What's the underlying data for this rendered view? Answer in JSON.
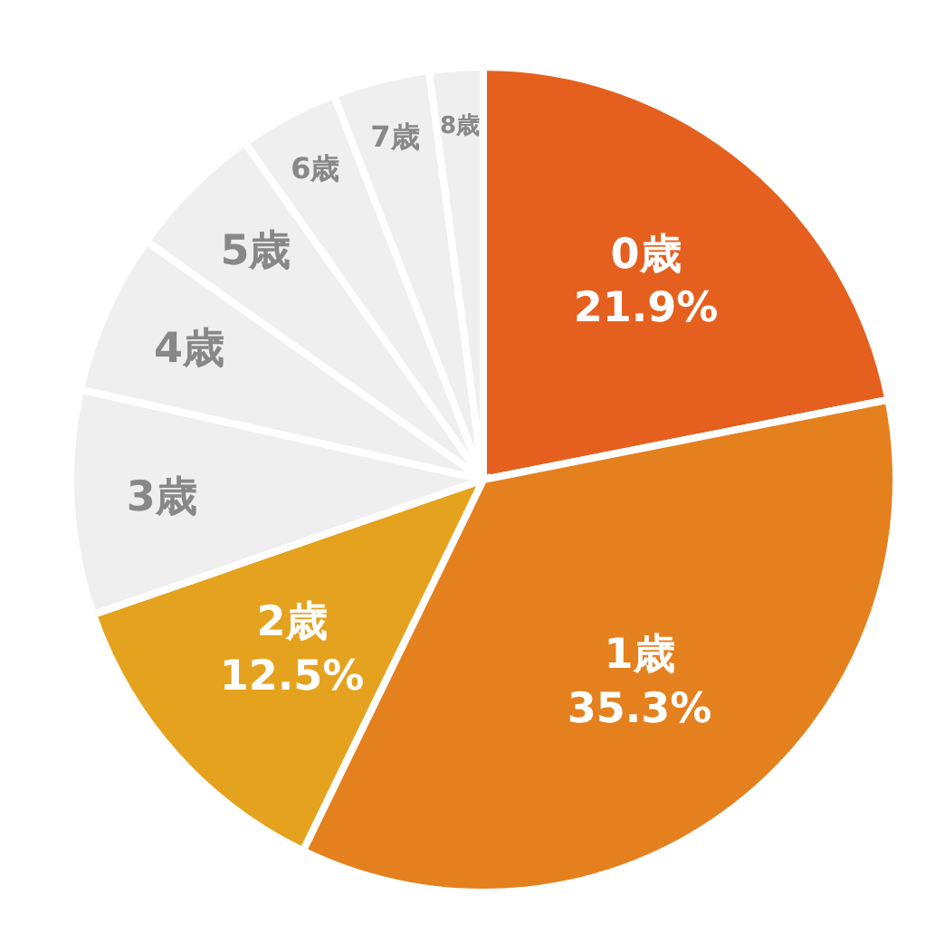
{
  "chart_data": {
    "type": "pie",
    "categories": [
      "0歳",
      "1歳",
      "2歳",
      "3歳",
      "4歳",
      "5歳",
      "6歳",
      "7歳",
      "8歳"
    ],
    "values": [
      21.9,
      35.3,
      12.5,
      8.8,
      6.3,
      5.4,
      3.9,
      3.8,
      2.1
    ],
    "value_labels": [
      "21.9%",
      "35.3%",
      "12.5%",
      null,
      null,
      null,
      null,
      null,
      null
    ],
    "colors": [
      "#e5601e",
      "#e5801e",
      "#e5a21e",
      "#efefef",
      "#efefef",
      "#efefef",
      "#efefef",
      "#efefef",
      "#efefef"
    ]
  }
}
